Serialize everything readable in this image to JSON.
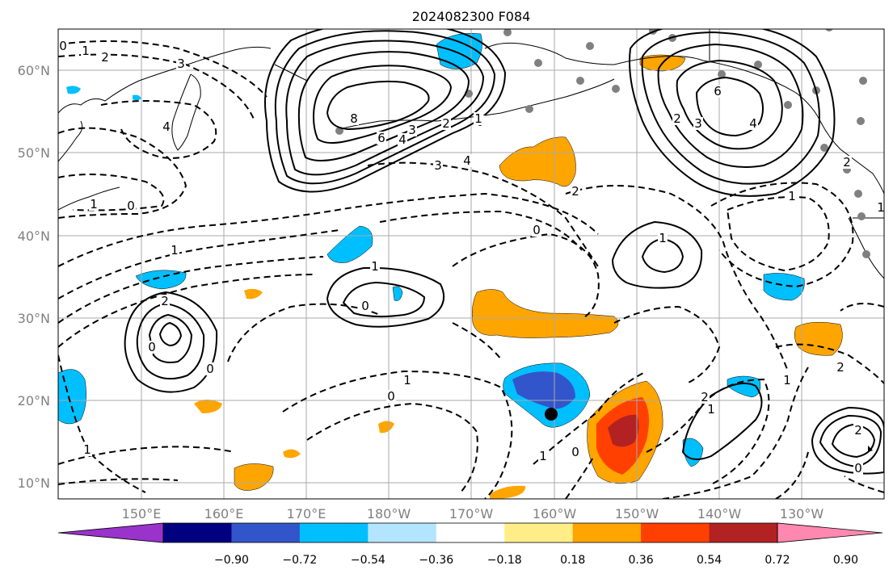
{
  "title": "2024082300 F084",
  "map": {
    "lat_ticks": [
      "60°N",
      "50°N",
      "40°N",
      "30°N",
      "20°N",
      "10°N"
    ],
    "lon_ticks": [
      "150°E",
      "160°E",
      "170°E",
      "180°W",
      "170°W",
      "160°W",
      "150°W",
      "140°W",
      "130°W"
    ],
    "contour_labels": [
      {
        "name": "contour-label-0-nw",
        "text": "0"
      },
      {
        "name": "contour-label-1-nw",
        "text": "1"
      },
      {
        "name": "contour-label-2-nw",
        "text": "2"
      },
      {
        "name": "contour-label-3-nw",
        "text": "3"
      },
      {
        "name": "contour-label-4-kam",
        "text": "4"
      },
      {
        "name": "contour-label-8-high",
        "text": "8"
      },
      {
        "name": "contour-label-6-high",
        "text": "6"
      },
      {
        "name": "contour-label-4-high",
        "text": "4"
      },
      {
        "name": "contour-label-3-high",
        "text": "3"
      },
      {
        "name": "contour-label-2-high",
        "text": "2"
      },
      {
        "name": "contour-label-0-center",
        "text": "0"
      },
      {
        "name": "contour-label-3-center",
        "text": "3"
      },
      {
        "name": "contour-label-4-center",
        "text": "4"
      },
      {
        "name": "contour-label-2-gulf",
        "text": "2"
      },
      {
        "name": "contour-label-3-gulf",
        "text": "3"
      },
      {
        "name": "contour-label-6-gulf",
        "text": "6"
      },
      {
        "name": "contour-label-4-gulf",
        "text": "4"
      },
      {
        "name": "contour-label-2-mid",
        "text": "2"
      },
      {
        "name": "contour-label-0-mid",
        "text": "0"
      },
      {
        "name": "contour-label-1-mid",
        "text": "1"
      },
      {
        "name": "contour-label-2-west",
        "text": "2"
      },
      {
        "name": "contour-label-1-west",
        "text": "1"
      },
      {
        "name": "contour-label-0-west",
        "text": "0"
      },
      {
        "name": "contour-label-1-c",
        "text": "1"
      },
      {
        "name": "contour-label-0-c",
        "text": "0"
      },
      {
        "name": "contour-label-1-sw",
        "text": "1"
      },
      {
        "name": "contour-label-2-sw",
        "text": "2"
      },
      {
        "name": "contour-label-0-sw",
        "text": "0"
      },
      {
        "name": "contour-label-0-s",
        "text": "0"
      },
      {
        "name": "contour-label-1-s",
        "text": "1"
      },
      {
        "name": "contour-label-0-hi",
        "text": "0"
      },
      {
        "name": "contour-label-1-hi",
        "text": "1"
      },
      {
        "name": "contour-label-0-se",
        "text": "0"
      },
      {
        "name": "contour-label-1-se",
        "text": "1"
      },
      {
        "name": "contour-label-2-se",
        "text": "2"
      },
      {
        "name": "contour-label-0-e",
        "text": "0"
      },
      {
        "name": "contour-label-1-e",
        "text": "1"
      },
      {
        "name": "contour-label-2-e",
        "text": "2"
      },
      {
        "name": "contour-label-1-ne",
        "text": "1"
      },
      {
        "name": "contour-label-1-far-w",
        "text": "1"
      },
      {
        "name": "contour-label-2-far-w",
        "text": "2"
      },
      {
        "name": "contour-label-1-bl",
        "text": "1"
      },
      {
        "name": "contour-label-1-br",
        "text": "1"
      }
    ]
  },
  "colorbar": {
    "colors": [
      "#9933cc",
      "#000080",
      "#3355cc",
      "#00bfff",
      "#b3e5ff",
      "#ffffff",
      "#ffee88",
      "#ffa500",
      "#ff4000",
      "#b22222",
      "#ff88b0"
    ],
    "labels": [
      "−0.90",
      "−0.72",
      "−0.54",
      "−0.36",
      "−0.18",
      "0.18",
      "0.36",
      "0.54",
      "0.72",
      "0.90"
    ]
  }
}
